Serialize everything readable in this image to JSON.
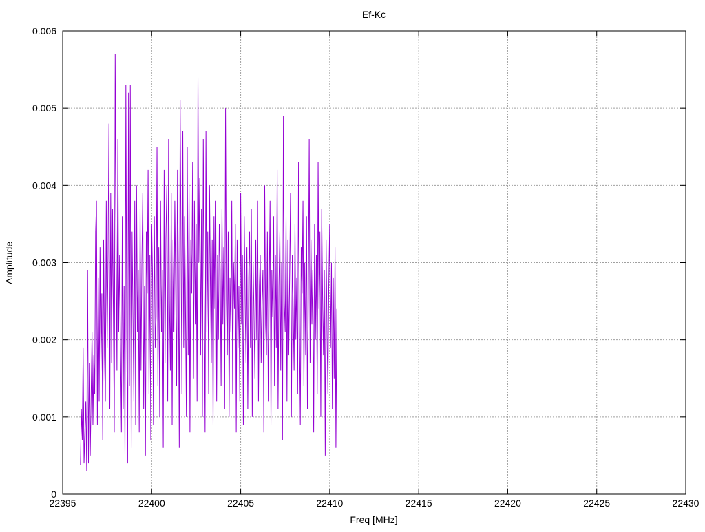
{
  "chart_data": {
    "type": "line",
    "title": "Ef-Kc",
    "xlabel": "Freq [MHz]",
    "ylabel": "Amplitude",
    "xlim": [
      22395,
      22430
    ],
    "ylim": [
      0,
      0.006
    ],
    "xticks": [
      22395,
      22400,
      22405,
      22410,
      22415,
      22420,
      22425,
      22430
    ],
    "xtick_labels": [
      "22395",
      "22400",
      "22405",
      "22410",
      "22415",
      "22420",
      "22425",
      "22430"
    ],
    "yticks": [
      0,
      0.001,
      0.002,
      0.003,
      0.004,
      0.005,
      0.006
    ],
    "ytick_labels": [
      "0",
      "0.001",
      "0.002",
      "0.003",
      "0.004",
      "0.005",
      "0.006"
    ],
    "grid": true,
    "line_color": "#9400d3",
    "series": [
      {
        "x_start": 22396.0,
        "x_step": 0.05,
        "values": [
          0.00038,
          0.0011,
          0.0007,
          0.0019,
          0.0004,
          0.0008,
          0.0012,
          0.0003,
          0.0029,
          0.0004,
          0.0017,
          0.0005,
          0.0013,
          0.0021,
          0.0009,
          0.0018,
          0.0013,
          0.0034,
          0.0038,
          0.0009,
          0.0028,
          0.0012,
          0.0032,
          0.0016,
          0.0026,
          0.0007,
          0.0033,
          0.0018,
          0.0012,
          0.0038,
          0.0019,
          0.0031,
          0.0048,
          0.0011,
          0.0039,
          0.0017,
          0.0037,
          0.0023,
          0.0008,
          0.0057,
          0.0034,
          0.0016,
          0.0046,
          0.0021,
          0.0031,
          0.0019,
          0.0008,
          0.0036,
          0.0011,
          0.0027,
          0.0005,
          0.0053,
          0.0021,
          0.0004,
          0.0052,
          0.0014,
          0.0053,
          0.0006,
          0.0034,
          0.0023,
          0.0012,
          0.0038,
          0.0009,
          0.004,
          0.0021,
          0.0029,
          0.0008,
          0.0037,
          0.0016,
          0.003,
          0.0039,
          0.0011,
          0.0027,
          0.0005,
          0.0034,
          0.0026,
          0.0042,
          0.0013,
          0.0031,
          0.0007,
          0.0035,
          0.0028,
          0.0009,
          0.0036,
          0.0019,
          0.0023,
          0.0045,
          0.0014,
          0.0032,
          0.001,
          0.0038,
          0.0021,
          0.0029,
          0.0006,
          0.0042,
          0.0017,
          0.0033,
          0.004,
          0.0012,
          0.0046,
          0.0025,
          0.0016,
          0.0039,
          0.0009,
          0.0033,
          0.0021,
          0.0038,
          0.0026,
          0.0014,
          0.0042,
          0.0029,
          0.0006,
          0.0051,
          0.0032,
          0.0013,
          0.0047,
          0.0019,
          0.0036,
          0.0024,
          0.001,
          0.0045,
          0.0018,
          0.004,
          0.0008,
          0.0033,
          0.0026,
          0.0043,
          0.0015,
          0.0038,
          0.0022,
          0.0035,
          0.0012,
          0.0054,
          0.003,
          0.0041,
          0.0018,
          0.0037,
          0.001,
          0.0046,
          0.0026,
          0.0008,
          0.0047,
          0.0021,
          0.0034,
          0.0013,
          0.004,
          0.0027,
          0.0017,
          0.0033,
          0.0009,
          0.0036,
          0.0024,
          0.0038,
          0.0012,
          0.0031,
          0.002,
          0.0035,
          0.0029,
          0.0014,
          0.0037,
          0.0022,
          0.0032,
          0.0011,
          0.005,
          0.0025,
          0.0018,
          0.0034,
          0.001,
          0.0028,
          0.0021,
          0.0038,
          0.0013,
          0.003,
          0.0024,
          0.0035,
          0.0008,
          0.0033,
          0.0019,
          0.0027,
          0.0012,
          0.0039,
          0.0022,
          0.0031,
          0.0009,
          0.0036,
          0.0025,
          0.0017,
          0.0032,
          0.0011,
          0.0028,
          0.0034,
          0.0019,
          0.0037,
          0.001,
          0.003,
          0.0023,
          0.0015,
          0.0033,
          0.002,
          0.0038,
          0.0012,
          0.0027,
          0.0031,
          0.0017,
          0.0025,
          0.0029,
          0.0008,
          0.004,
          0.0022,
          0.0018,
          0.0034,
          0.0012,
          0.0026,
          0.0038,
          0.0009,
          0.0029,
          0.0023,
          0.0036,
          0.0014,
          0.0031,
          0.0019,
          0.0042,
          0.0011,
          0.0027,
          0.0034,
          0.0016,
          0.003,
          0.0007,
          0.0049,
          0.0025,
          0.0021,
          0.0036,
          0.0012,
          0.0033,
          0.0018,
          0.0028,
          0.0039,
          0.001,
          0.0031,
          0.0024,
          0.0016,
          0.0035,
          0.002,
          0.0028,
          0.0013,
          0.0043,
          0.0022,
          0.0009,
          0.0032,
          0.0026,
          0.0038,
          0.0014,
          0.003,
          0.0018,
          0.0036,
          0.0011,
          0.0025,
          0.0046,
          0.0017,
          0.0033,
          0.0022,
          0.0029,
          0.0008,
          0.0035,
          0.002,
          0.0031,
          0.0013,
          0.0043,
          0.0024,
          0.0034,
          0.001,
          0.0037,
          0.0026,
          0.0018,
          0.0029,
          0.0005,
          0.0033,
          0.0021,
          0.0013,
          0.0027,
          0.0035,
          0.0019,
          0.003,
          0.0011,
          0.0028,
          0.0015,
          0.0032,
          0.0006,
          0.0024
        ]
      }
    ]
  }
}
